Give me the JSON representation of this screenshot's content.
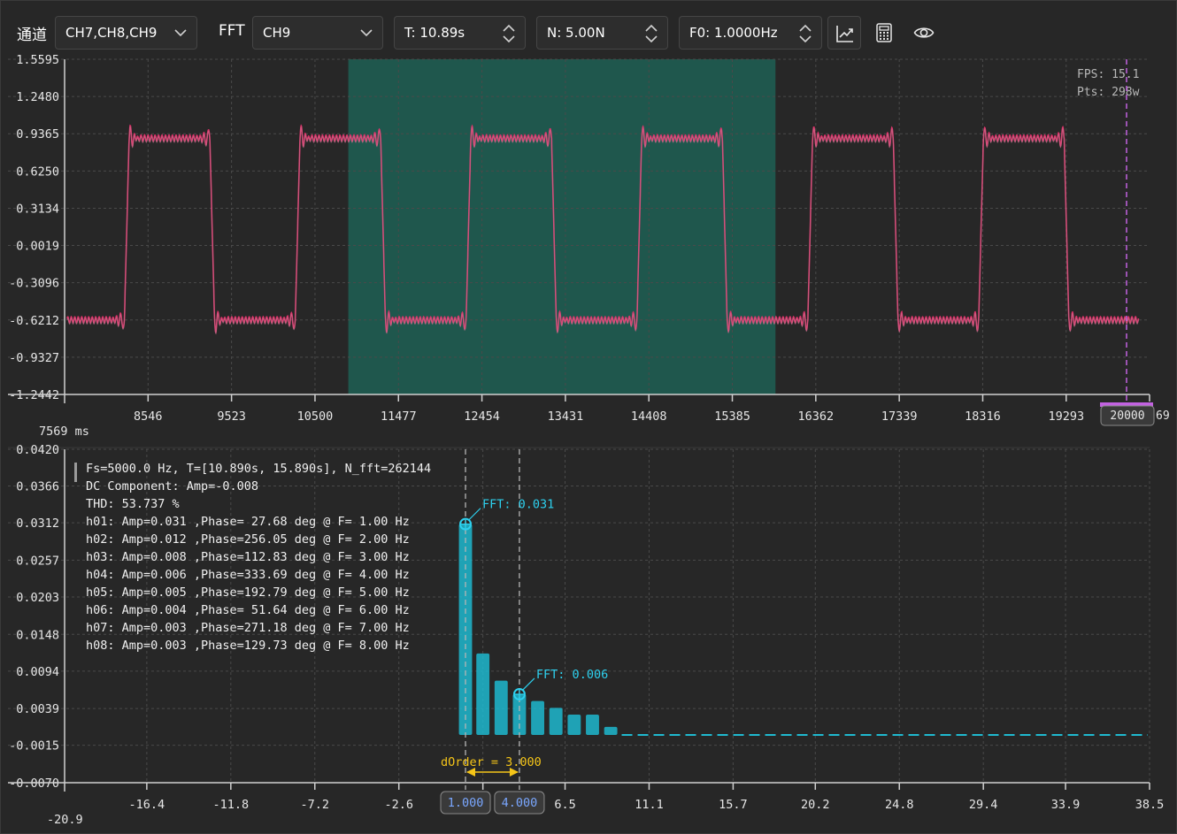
{
  "toolbar": {
    "channel_label": "通道",
    "channel_value": "CH7,CH8,CH9",
    "fft_label": "FFT",
    "fft_value": "CH9",
    "t_value": "T: 10.89s",
    "n_value": "N: 5.00N",
    "f0_value": "F0: 1.0000Hz",
    "icons": [
      "chart-line-icon",
      "calculator-icon",
      "eye-icon"
    ]
  },
  "colors": {
    "signal": "#e8336e",
    "selection": "#1f5a4f",
    "fft_bar": "#1fb9cf",
    "cursor_annot": "#2dd0ee",
    "dorder": "#f5c518",
    "marker": "#c262e0"
  },
  "overlay": {
    "fps": "FPS: 15.1",
    "pts": "Pts: 298w",
    "marker_value": "20000",
    "marker_tail": "69"
  },
  "chart_data": [
    {
      "type": "line",
      "name": "time-domain",
      "y_ticks": [
        "1.5595",
        "1.2480",
        "0.9365",
        "0.6250",
        "0.3134",
        "0.0019",
        "-0.3096",
        "-0.6212",
        "-0.9327",
        "-1.2442"
      ],
      "x_ticks": [
        "8546",
        "9523",
        "10500",
        "11477",
        "12454",
        "13431",
        "14408",
        "15385",
        "16362",
        "17339",
        "18316",
        "19293"
      ],
      "x_start_label": "7569 ms",
      "xlim": [
        7569,
        20269
      ],
      "ylim": [
        -1.2442,
        1.5595
      ],
      "selection": [
        10890,
        15890
      ],
      "square_wave": {
        "period_ms": 2000,
        "first_rise_ms": 6269,
        "high": 0.9,
        "low": -0.62
      }
    },
    {
      "type": "bar",
      "name": "fft",
      "y_ticks": [
        "0.0420",
        "0.0366",
        "0.0312",
        "0.0257",
        "0.0203",
        "0.0148",
        "0.0094",
        "0.0039",
        "-0.0015",
        "-0.0070"
      ],
      "x_ticks": [
        "-16.4",
        "-11.8",
        "-7.2",
        "-2.6",
        "2.0",
        "6.5",
        "11.1",
        "15.7",
        "20.2",
        "24.8",
        "29.4",
        "33.9",
        "38.5"
      ],
      "x_start_label": "-20.9",
      "xlim": [
        -20.9,
        38.5
      ],
      "ylim": [
        -0.007,
        0.042
      ],
      "bars": [
        {
          "f": 1,
          "v": 0.031
        },
        {
          "f": 2,
          "v": 0.012
        },
        {
          "f": 3,
          "v": 0.008
        },
        {
          "f": 4,
          "v": 0.006
        },
        {
          "f": 5,
          "v": 0.005
        },
        {
          "f": 6,
          "v": 0.004
        },
        {
          "f": 7,
          "v": 0.003
        },
        {
          "f": 8,
          "v": 0.003
        },
        {
          "f": 9,
          "v": 0.0012
        }
      ],
      "info_lines": [
        "Fs=5000.0 Hz, T=[10.890s, 15.890s], N_fft=262144",
        "DC Component: Amp=-0.008",
        "THD: 53.737 %",
        "h01: Amp=0.031 ,Phase= 27.68 deg @ F=  1.00 Hz",
        "h02: Amp=0.012 ,Phase=256.05 deg @ F=  2.00 Hz",
        "h03: Amp=0.008 ,Phase=112.83 deg @ F=  3.00 Hz",
        "h04: Amp=0.006 ,Phase=333.69 deg @ F=  4.00 Hz",
        "h05: Amp=0.005 ,Phase=192.79 deg @ F=  5.00 Hz",
        "h06: Amp=0.004 ,Phase= 51.64 deg @ F=  6.00 Hz",
        "h07: Amp=0.003 ,Phase=271.18 deg @ F=  7.00 Hz",
        "h08: Amp=0.003 ,Phase=129.73 deg @ F=  8.00 Hz"
      ],
      "cursor1": {
        "f": 1.0,
        "label": "FFT: 0.031",
        "value": 0.031,
        "tag": "1.000"
      },
      "cursor2": {
        "f": 4.0,
        "label": "FFT: 0.006",
        "value": 0.006,
        "tag": "4.000"
      },
      "dorder": "dOrder = 3.000"
    }
  ]
}
